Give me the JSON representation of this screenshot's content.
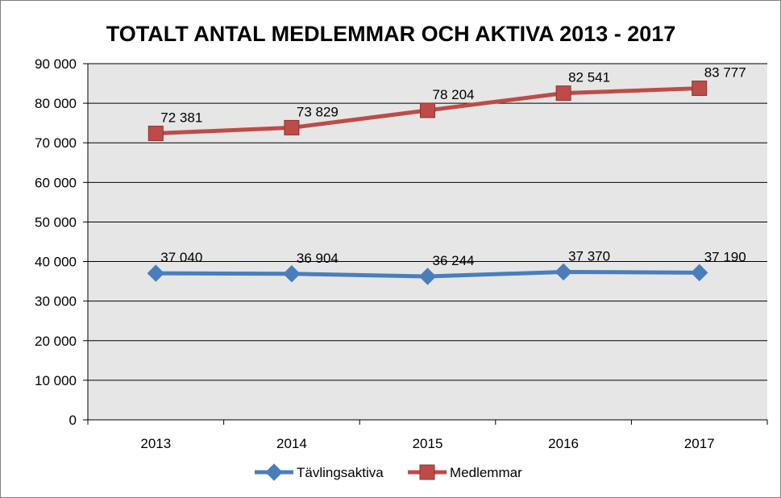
{
  "chart_data": {
    "type": "line",
    "title": "TOTALT ANTAL MEDLEMMAR OCH AKTIVA 2013 - 2017",
    "xlabel": "",
    "ylabel": "",
    "categories": [
      "2013",
      "2014",
      "2015",
      "2016",
      "2017"
    ],
    "ylim": [
      0,
      90000
    ],
    "yticks": [
      0,
      10000,
      20000,
      30000,
      40000,
      50000,
      60000,
      70000,
      80000,
      90000
    ],
    "ytick_labels": [
      "0",
      "10 000",
      "20 000",
      "30 000",
      "40 000",
      "50 000",
      "60 000",
      "70 000",
      "80 000",
      "90 000"
    ],
    "grid": true,
    "legend_position": "bottom",
    "series": [
      {
        "name": "Tävlingsaktiva",
        "values": [
          37040,
          36904,
          36244,
          37370,
          37190
        ],
        "labels": [
          "37 040",
          "36 904",
          "36 244",
          "37 370",
          "37 190"
        ],
        "color": "#4a7ebb",
        "marker": "diamond"
      },
      {
        "name": "Medlemmar",
        "values": [
          72381,
          73829,
          78204,
          82541,
          83777
        ],
        "labels": [
          "72 381",
          "73 829",
          "78 204",
          "82 541",
          "83 777"
        ],
        "color": "#be4b48",
        "marker": "square"
      }
    ],
    "plot_background": "#e6e6e6",
    "gridline_color": "#000000"
  }
}
